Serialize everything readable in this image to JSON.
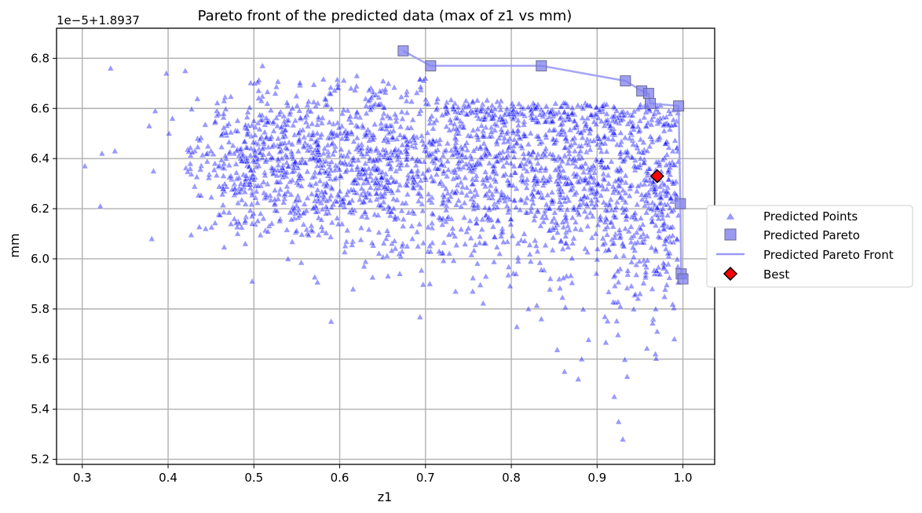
{
  "chart_data": {
    "type": "scatter",
    "title": "Pareto front of the predicted data (max of z1 vs mm)",
    "xlabel": "z1",
    "ylabel": "mm",
    "offset_label": "1e−5+1.8937",
    "xlim": [
      0.27,
      1.037
    ],
    "ylim": [
      5.18,
      6.92
    ],
    "xticks": [
      0.3,
      0.4,
      0.5,
      0.6,
      0.7,
      0.8,
      0.9,
      1.0
    ],
    "xtick_labels": [
      "0.3",
      "0.4",
      "0.5",
      "0.6",
      "0.7",
      "0.8",
      "0.9",
      "1.0"
    ],
    "yticks": [
      5.2,
      5.4,
      5.6,
      5.8,
      6.0,
      6.2,
      6.4,
      6.6,
      6.8
    ],
    "ytick_labels": [
      "5.2",
      "5.4",
      "5.6",
      "5.8",
      "6.0",
      "6.2",
      "6.4",
      "6.6",
      "6.8"
    ],
    "grid": true,
    "legend_position": "right",
    "colors": {
      "points": "#0000ff",
      "pareto_marker": "#8080ee",
      "pareto_line": "#9a9af5",
      "best": "#ff0000"
    },
    "series": [
      {
        "name": "Predicted Points",
        "marker": "triangle",
        "sample_points": [
          [
            0.303,
            6.37
          ],
          [
            0.321,
            6.21
          ],
          [
            0.323,
            6.42
          ],
          [
            0.333,
            6.76
          ],
          [
            0.338,
            6.43
          ],
          [
            0.378,
            6.53
          ],
          [
            0.381,
            6.08
          ],
          [
            0.383,
            6.35
          ],
          [
            0.385,
            6.59
          ],
          [
            0.398,
            6.74
          ],
          [
            0.401,
            6.5
          ],
          [
            0.405,
            6.56
          ],
          [
            0.42,
            6.75
          ],
          [
            0.45,
            6.43
          ],
          [
            0.49,
            6.06
          ],
          [
            0.498,
            5.91
          ],
          [
            0.51,
            6.77
          ],
          [
            0.59,
            5.75
          ],
          [
            0.62,
            6.73
          ],
          [
            0.67,
            5.94
          ],
          [
            0.705,
            5.9
          ],
          [
            0.735,
            5.87
          ],
          [
            0.755,
            5.87
          ],
          [
            0.82,
            5.8
          ],
          [
            0.835,
            5.76
          ],
          [
            0.862,
            5.55
          ],
          [
            0.878,
            5.52
          ],
          [
            0.882,
            5.6
          ],
          [
            0.92,
            5.45
          ],
          [
            0.925,
            5.35
          ],
          [
            0.93,
            5.28
          ],
          [
            0.935,
            5.53
          ],
          [
            0.968,
            5.62
          ],
          [
            0.97,
            5.71
          ],
          [
            0.99,
            5.68
          ]
        ]
      },
      {
        "name": "Predicted Pareto",
        "marker": "square",
        "points": [
          [
            0.674,
            6.83
          ],
          [
            0.706,
            6.77
          ],
          [
            0.835,
            6.77
          ],
          [
            0.933,
            6.71
          ],
          [
            0.952,
            6.67
          ],
          [
            0.96,
            6.66
          ],
          [
            0.962,
            6.62
          ],
          [
            0.995,
            6.61
          ],
          [
            0.997,
            6.22
          ],
          [
            0.998,
            5.94
          ],
          [
            1.0,
            5.92
          ]
        ]
      },
      {
        "name": "Predicted Pareto Front",
        "marker": "line",
        "points": [
          [
            0.674,
            6.83
          ],
          [
            0.706,
            6.77
          ],
          [
            0.835,
            6.77
          ],
          [
            0.933,
            6.71
          ],
          [
            0.952,
            6.67
          ],
          [
            0.96,
            6.66
          ],
          [
            0.962,
            6.62
          ],
          [
            0.995,
            6.61
          ],
          [
            0.997,
            6.22
          ],
          [
            0.998,
            5.94
          ],
          [
            1.0,
            5.92
          ]
        ]
      },
      {
        "name": "Best",
        "marker": "diamond",
        "points": [
          [
            0.97,
            6.33
          ]
        ]
      }
    ]
  }
}
